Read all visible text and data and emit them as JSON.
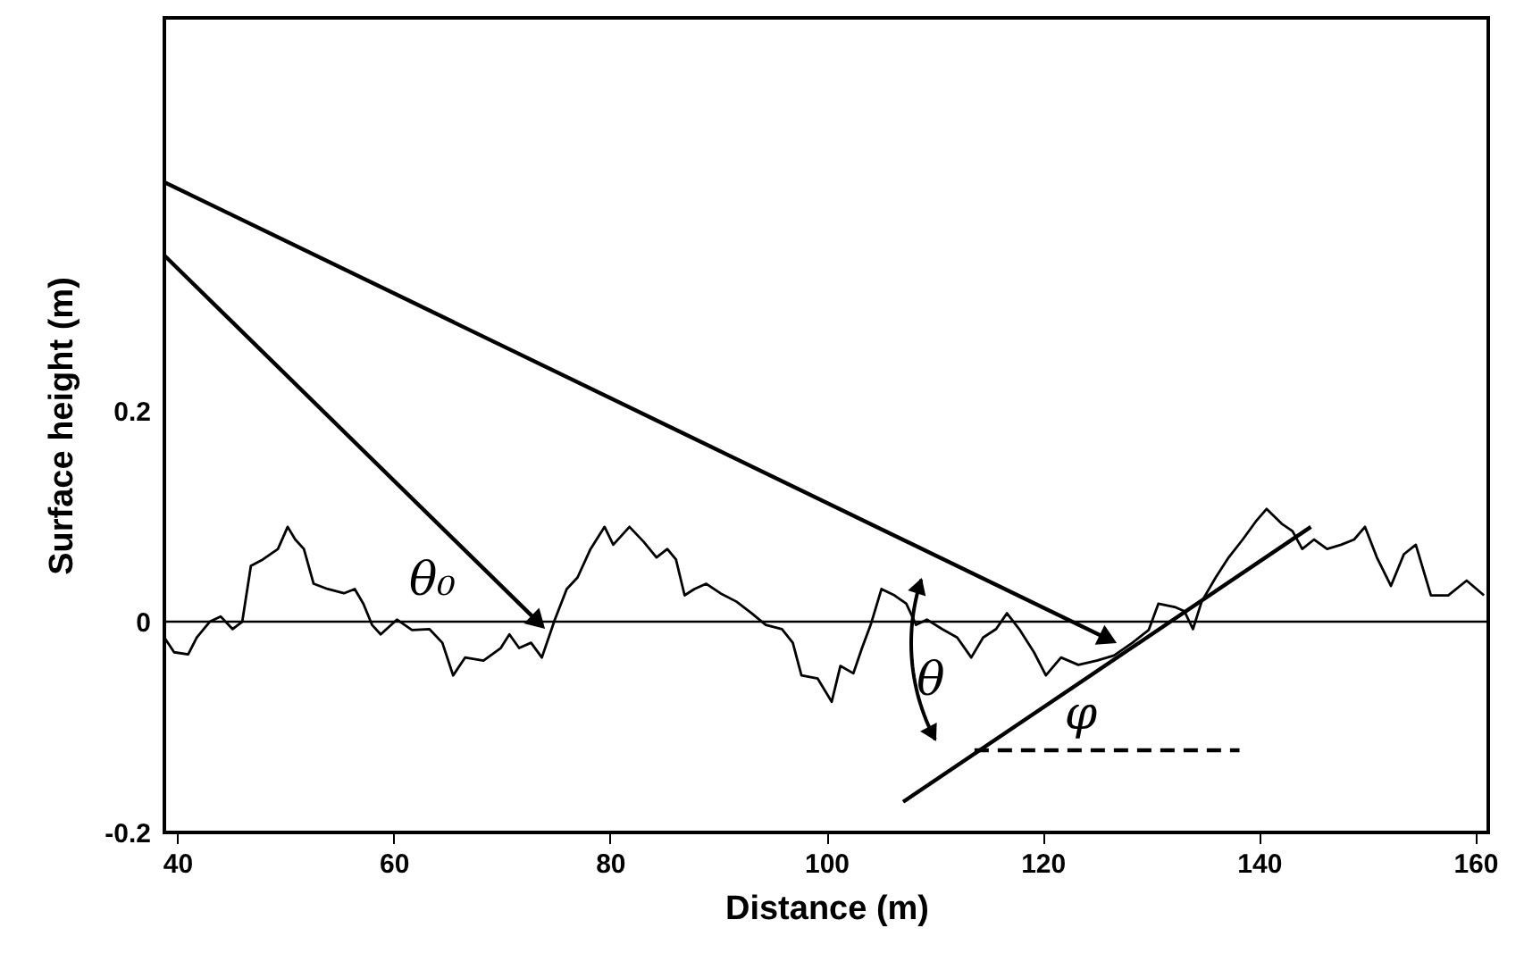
{
  "chart_data": {
    "type": "line",
    "xlabel": "Distance (m)",
    "ylabel": "Surface height (m)",
    "xlim": [
      38.8,
      161.2
    ],
    "ylim": [
      -0.2,
      0.573
    ],
    "xticks": [
      40,
      60,
      80,
      100,
      120,
      140,
      160
    ],
    "yticks": [
      {
        "value": -0.2,
        "label": "-0.2"
      },
      {
        "value": 0,
        "label": "0"
      },
      {
        "value": 0.2,
        "label": "0.2"
      }
    ],
    "grid": false,
    "marker": "none",
    "ref_lines": [
      {
        "axis": "y",
        "value": 0,
        "color": "#000000"
      }
    ],
    "series": [
      {
        "color": "#000000",
        "line_style": "solid",
        "x": [
          38.8,
          39.7,
          41.0,
          41.8,
          43.0,
          44.0,
          45.1,
          46.0,
          46.8,
          47.9,
          49.3,
          50.2,
          50.9,
          51.7,
          52.6,
          53.9,
          55.4,
          56.4,
          57.2,
          58.0,
          58.8,
          60.3,
          61.7,
          63.3,
          64.5,
          65.5,
          66.6,
          68.3,
          69.9,
          70.7,
          71.6,
          72.7,
          73.7,
          74.9,
          76.0,
          77.0,
          78.2,
          79.5,
          80.3,
          81.8,
          83.1,
          84.3,
          85.3,
          86.1,
          86.9,
          87.8,
          88.9,
          90.2,
          91.7,
          93.1,
          94.4,
          95.9,
          96.9,
          97.7,
          99.2,
          100.5,
          101.3,
          102.5,
          103.3,
          104.1,
          105.1,
          106.3,
          107.4,
          108.3,
          109.3,
          110.7,
          112.1,
          113.4,
          114.5,
          115.7,
          116.7,
          117.9,
          119.2,
          120.3,
          121.7,
          123.3,
          125.0,
          126.6,
          128.3,
          129.8,
          130.7,
          132.2,
          133.1,
          133.9,
          134.7,
          136.0,
          137.2,
          138.5,
          139.7,
          140.7,
          142.1,
          143.1,
          144.0,
          145.1,
          146.3,
          147.6,
          148.8,
          149.8,
          150.9,
          152.2,
          153.4,
          154.5,
          155.9,
          157.5,
          159.2,
          160.8
        ],
        "values": [
          -0.015,
          -0.029,
          -0.031,
          -0.015,
          0,
          0.005,
          -0.007,
          0,
          0.053,
          0.059,
          0.069,
          0.09,
          0.078,
          0.069,
          0.036,
          0.031,
          0.027,
          0.031,
          0.017,
          -0.003,
          -0.012,
          0.002,
          -0.008,
          -0.007,
          -0.02,
          -0.051,
          -0.034,
          -0.037,
          -0.025,
          -0.012,
          -0.025,
          -0.02,
          -0.034,
          0.002,
          0.031,
          0.042,
          0.069,
          0.09,
          0.073,
          0.09,
          0.076,
          0.061,
          0.069,
          0.059,
          0.025,
          0.031,
          0.036,
          0.027,
          0.019,
          0.008,
          -0.003,
          -0.007,
          -0.02,
          -0.051,
          -0.054,
          -0.076,
          -0.042,
          -0.049,
          -0.025,
          -0.003,
          0.031,
          0.025,
          0.017,
          -0.003,
          0.002,
          -0.007,
          -0.015,
          -0.034,
          -0.015,
          -0.007,
          0.008,
          -0.008,
          -0.029,
          -0.051,
          -0.034,
          -0.041,
          -0.037,
          -0.032,
          -0.02,
          -0.008,
          0.017,
          0.014,
          0.01,
          -0.007,
          0.019,
          0.042,
          0.061,
          0.078,
          0.095,
          0.107,
          0.093,
          0.086,
          0.069,
          0.078,
          0.069,
          0.073,
          0.078,
          0.09,
          0.061,
          0.034,
          0.064,
          0.073,
          0.025,
          0.025,
          0.039,
          0.025
        ]
      },
      {
        "color": "#000000",
        "line_style": "solid",
        "x": [
          107.1,
          144.8
        ],
        "values": [
          -0.171,
          0.09
        ]
      },
      {
        "color": "#000000",
        "line_style": "dashed",
        "x": [
          113.7,
          138.2
        ],
        "values": [
          -0.122,
          -0.122
        ]
      }
    ],
    "annotations": [
      "θ₀",
      "θ",
      "φ"
    ]
  }
}
